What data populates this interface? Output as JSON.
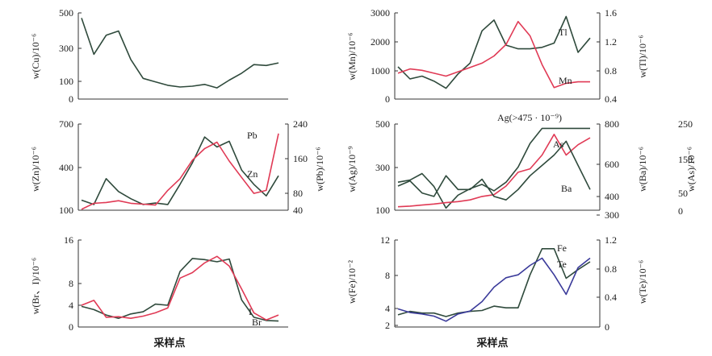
{
  "colors": {
    "dark": "#2f4a3c",
    "red": "#e03a55",
    "pink": "#f08aa0",
    "blue": "#3a3a9a",
    "axis": "#333333"
  },
  "chart_data": [
    {
      "id": "cu",
      "type": "line",
      "xlabel": "",
      "ylabel": "w(Cu)/10⁻⁶",
      "yticks": [
        "500",
        "300",
        "100",
        "0"
      ],
      "ylim": [
        0,
        500
      ],
      "series": [
        {
          "name": "",
          "color": "dark",
          "x": [
            0,
            1,
            2,
            3,
            4,
            5,
            6,
            7,
            8,
            9,
            10,
            11,
            12,
            13,
            14,
            15,
            16
          ],
          "y": [
            470,
            260,
            370,
            395,
            230,
            120,
            100,
            80,
            70,
            75,
            85,
            65,
            110,
            150,
            200,
            195,
            210
          ]
        }
      ]
    },
    {
      "id": "mn-tl",
      "type": "line",
      "xlabel": "",
      "ylabel": "w(Mn)/10⁻⁶",
      "ylabel_right": "w(Tl)/10⁻⁶",
      "yticks": [
        "3000",
        "2000",
        "1000",
        "0"
      ],
      "yticks_right": [
        "1.6",
        "1.2",
        "0.8",
        "0.4"
      ],
      "ylim": [
        0,
        3000
      ],
      "ylim_right": [
        0.4,
        1.6
      ],
      "series": [
        {
          "name": "Tl",
          "color": "dark",
          "axis": "right",
          "x": [
            0,
            1,
            2,
            3,
            4,
            5,
            6,
            7,
            8,
            9,
            10,
            11,
            12,
            13,
            14,
            15,
            16
          ],
          "y": [
            0.85,
            0.68,
            0.72,
            0.65,
            0.55,
            0.75,
            0.9,
            1.35,
            1.5,
            1.15,
            1.1,
            1.1,
            1.12,
            1.18,
            1.55,
            1.05,
            1.25
          ]
        },
        {
          "name": "Mn",
          "color": "red",
          "axis": "left",
          "x": [
            0,
            1,
            2,
            3,
            4,
            5,
            6,
            7,
            8,
            9,
            10,
            11,
            12,
            13,
            14,
            15,
            16
          ],
          "y": [
            900,
            1050,
            1000,
            900,
            800,
            950,
            1100,
            1250,
            1500,
            1900,
            2700,
            2200,
            1200,
            400,
            550,
            600,
            600
          ]
        }
      ]
    },
    {
      "id": "zn-pb",
      "type": "line",
      "xlabel": "",
      "ylabel": "w(Zn)/10⁻⁶",
      "ylabel_right": "w(Pb)/10⁻⁶",
      "yticks": [
        "700",
        "400",
        "100"
      ],
      "yticks_right": [
        "240",
        "160",
        "80",
        "40"
      ],
      "ylim": [
        100,
        700
      ],
      "ylim_right": [
        40,
        240
      ],
      "series": [
        {
          "name": "Zn",
          "color": "dark",
          "axis": "left",
          "x": [
            0,
            1,
            2,
            3,
            4,
            5,
            6,
            7,
            8,
            9,
            10,
            11,
            12,
            13,
            14,
            15,
            16
          ],
          "y": [
            170,
            140,
            320,
            230,
            180,
            140,
            150,
            140,
            280,
            430,
            610,
            540,
            580,
            380,
            280,
            200,
            340
          ]
        },
        {
          "name": "Pb",
          "color": "red",
          "axis": "right",
          "x": [
            0,
            1,
            2,
            3,
            4,
            5,
            6,
            7,
            8,
            9,
            10,
            11,
            12,
            13,
            14,
            15,
            16
          ],
          "y": [
            42,
            56,
            58,
            62,
            56,
            54,
            52,
            86,
            113,
            156,
            183,
            198,
            154,
            116,
            79,
            86,
            218
          ]
        }
      ]
    },
    {
      "id": "ag-ba-as",
      "type": "line",
      "xlabel": "",
      "ylabel": "w(Ag)/10⁻⁹",
      "ylabel_right": "w(Ba)/10⁻⁶",
      "ylabel_right2": "w(As)/10⁻⁶",
      "annotation": "Ag(>475 · 10⁻⁹)",
      "yticks": [
        "500",
        "300",
        "100"
      ],
      "yticks_right": [
        "800",
        "600",
        "400",
        "300"
      ],
      "yticks_right2": [
        "250",
        "150",
        "50",
        "0"
      ],
      "ylim": [
        100,
        500
      ],
      "ylim_right": [
        300,
        800
      ],
      "ylim_right2": [
        0,
        250
      ],
      "series": [
        {
          "name": "Ag",
          "color": "dark",
          "axis": "left",
          "x": [
            0,
            1,
            2,
            3,
            4,
            5,
            6,
            7,
            8,
            9,
            10,
            11,
            12,
            13,
            14,
            15,
            16
          ],
          "y": [
            230,
            240,
            270,
            210,
            110,
            170,
            200,
            220,
            190,
            230,
            300,
            410,
            480,
            480,
            480,
            480,
            480
          ]
        },
        {
          "name": "As",
          "color": "red",
          "axis": "right2",
          "x": [
            0,
            1,
            2,
            3,
            4,
            5,
            6,
            7,
            8,
            9,
            10,
            11,
            12,
            13,
            14,
            15,
            16
          ],
          "y": [
            10,
            12,
            15,
            18,
            22,
            25,
            30,
            40,
            45,
            70,
            110,
            120,
            160,
            220,
            160,
            190,
            210
          ]
        },
        {
          "name": "Ba",
          "color": "dark",
          "axis": "right",
          "x": [
            0,
            1,
            2,
            3,
            4,
            5,
            6,
            7,
            8,
            9,
            10,
            11,
            12,
            13,
            14,
            15,
            16
          ],
          "y": [
            440,
            470,
            400,
            380,
            500,
            420,
            420,
            480,
            380,
            360,
            420,
            500,
            560,
            620,
            700,
            560,
            420
          ]
        }
      ]
    },
    {
      "id": "br-i",
      "type": "line",
      "xlabel": "",
      "ylabel": "w(Br、I)/10⁻⁶",
      "yticks": [
        "16",
        "8",
        "4",
        "0"
      ],
      "ylim": [
        0,
        16
      ],
      "series": [
        {
          "name": "Br",
          "color": "dark",
          "x": [
            0,
            1,
            2,
            3,
            4,
            5,
            6,
            7,
            8,
            9,
            10,
            11,
            12,
            13,
            14,
            15,
            16
          ],
          "y": [
            3.8,
            3.2,
            2.2,
            1.6,
            2.4,
            2.8,
            4.2,
            4.0,
            10.2,
            12.6,
            12.4,
            12.0,
            12.5,
            5.0,
            1.8,
            1.2,
            1.1
          ]
        },
        {
          "name": "I",
          "color": "red",
          "x": [
            0,
            1,
            2,
            3,
            4,
            5,
            6,
            7,
            8,
            9,
            10,
            11,
            12,
            13,
            14,
            15,
            16
          ],
          "y": [
            4.0,
            4.9,
            1.8,
            1.9,
            1.6,
            2.0,
            2.6,
            3.5,
            9.0,
            10.0,
            11.8,
            13.0,
            11.2,
            7.0,
            2.6,
            1.3,
            2.2
          ]
        }
      ]
    },
    {
      "id": "fe-te",
      "type": "line",
      "xlabel": "",
      "ylabel": "w(Fe)/10⁻²",
      "ylabel_right": "w(Te)/10⁻⁶",
      "yticks": [
        "12",
        "8",
        "4",
        "2"
      ],
      "yticks_right": [
        "1.2",
        "0.8",
        "0.4",
        "0"
      ],
      "ylim": [
        2,
        12
      ],
      "ylim_right": [
        0,
        1.2
      ],
      "series": [
        {
          "name": "Fe",
          "color": "dark",
          "axis": "left",
          "x": [
            0,
            1,
            2,
            3,
            4,
            5,
            6,
            7,
            8,
            9,
            10,
            11,
            12,
            13,
            14,
            15,
            16
          ],
          "y": [
            3.4,
            3.8,
            3.6,
            3.6,
            3.2,
            3.6,
            3.8,
            3.9,
            4.4,
            4.2,
            4.2,
            8.0,
            11.0,
            11.0,
            7.6,
            8.6,
            9.5
          ]
        },
        {
          "name": "Te",
          "color": "blue",
          "axis": "right",
          "x": [
            0,
            1,
            2,
            3,
            4,
            5,
            6,
            7,
            8,
            9,
            10,
            11,
            12,
            13,
            14,
            15,
            16
          ],
          "y": [
            0.25,
            0.2,
            0.18,
            0.15,
            0.08,
            0.18,
            0.22,
            0.35,
            0.55,
            0.68,
            0.72,
            0.85,
            0.95,
            0.72,
            0.45,
            0.82,
            0.95
          ]
        }
      ]
    }
  ],
  "xlabels": {
    "left": "采样点",
    "right": "采样点"
  }
}
